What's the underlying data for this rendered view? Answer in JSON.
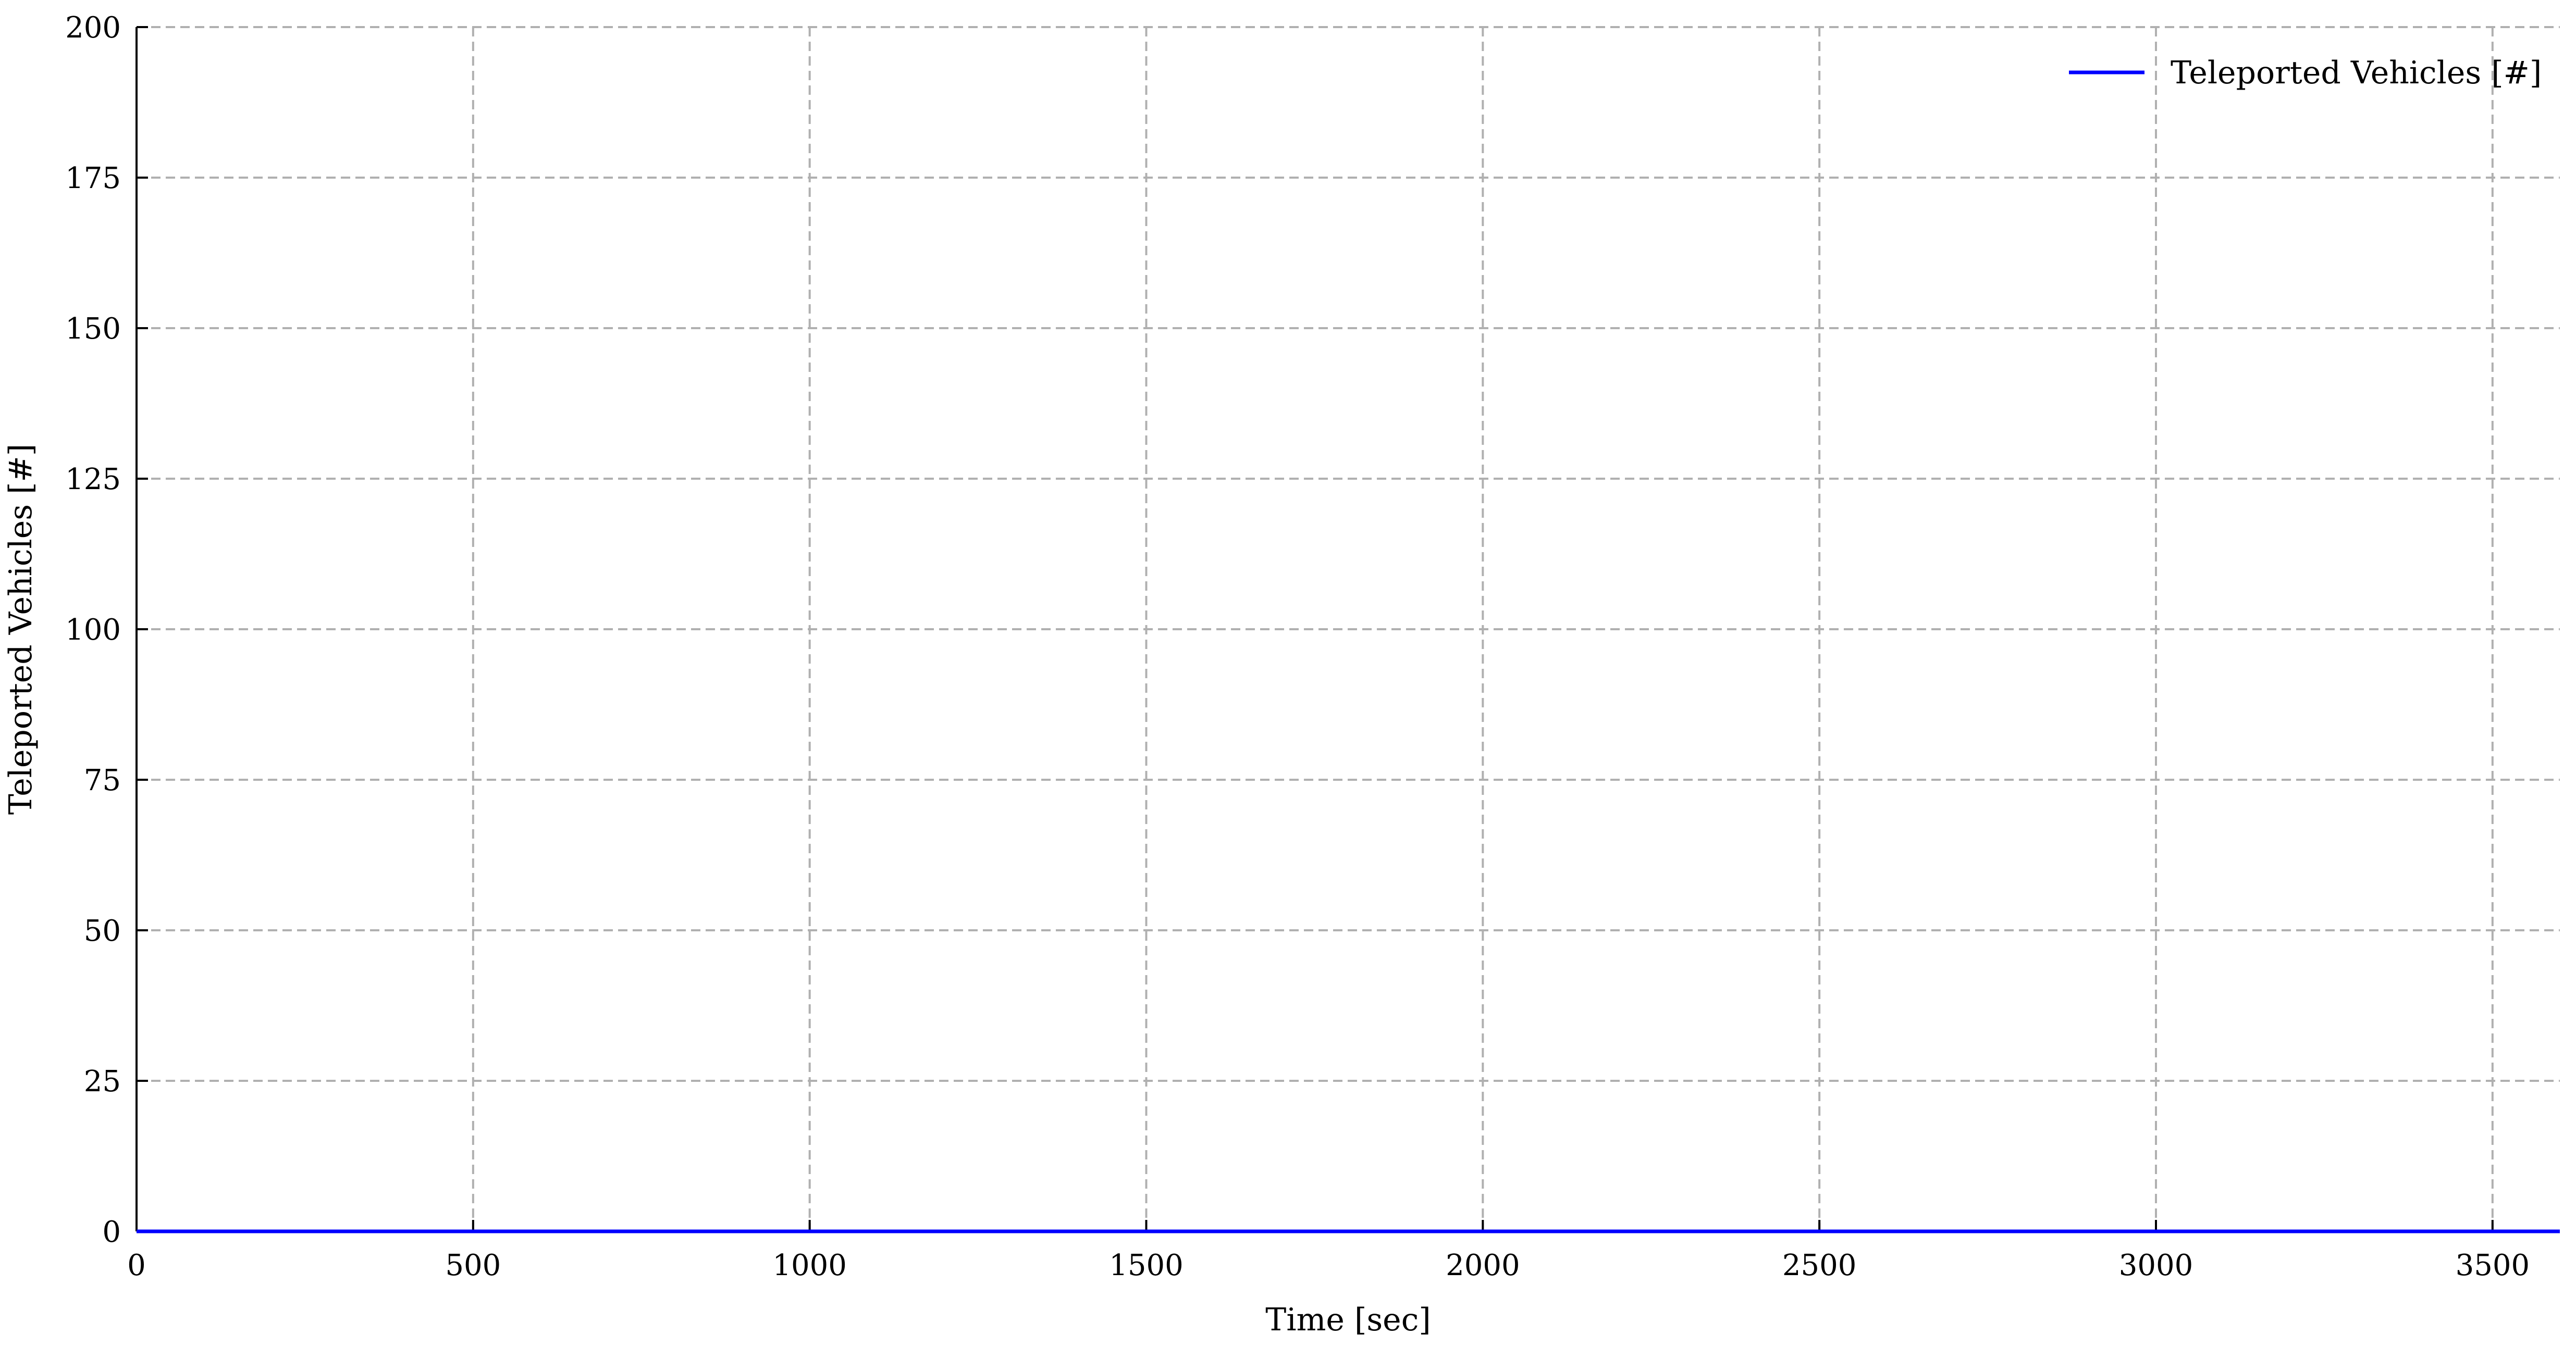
{
  "chart_data": {
    "type": "line",
    "title": "",
    "xlabel": "Time [sec]",
    "ylabel": "Teleported Vehicles [#]",
    "xlim": [
      0,
      3600
    ],
    "ylim": [
      0,
      200
    ],
    "x_ticks": [
      0,
      500,
      1000,
      1500,
      2000,
      2500,
      3000,
      3500
    ],
    "y_ticks": [
      0,
      25,
      50,
      75,
      100,
      125,
      150,
      175,
      200
    ],
    "grid": true,
    "legend_position": "top-right",
    "series": [
      {
        "name": "Teleported Vehicles [#]",
        "color": "#0000ff",
        "x": [
          0,
          500,
          1000,
          1500,
          2000,
          2500,
          3000,
          3500,
          3600
        ],
        "y": [
          0,
          0,
          0,
          0,
          0,
          0,
          0,
          0,
          0
        ]
      }
    ]
  }
}
